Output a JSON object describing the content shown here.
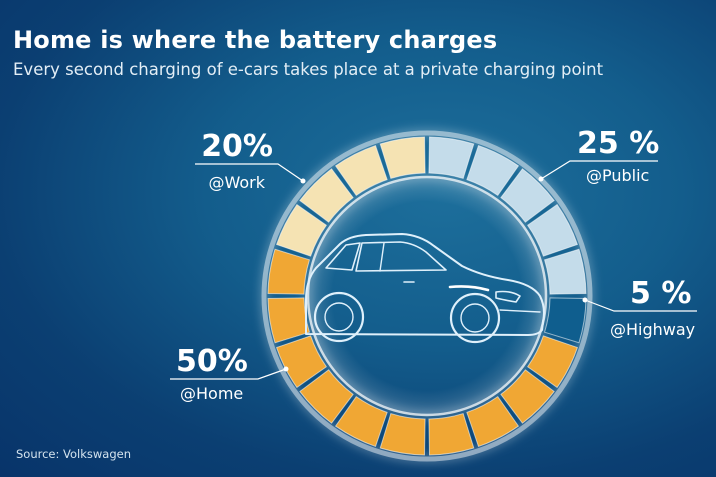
{
  "header": {
    "title": "Home is where the battery charges",
    "subtitle": "Every second charging of e-cars takes place at a private charging point"
  },
  "source": "Source: Volkswagen",
  "chart_data": {
    "type": "pie",
    "style": "segmented ring (donut) with car illustration in center",
    "total_segments": 20,
    "series": [
      {
        "label": "@Work",
        "display": "20%",
        "value": 20,
        "color": "#f5e3b3"
      },
      {
        "label": "@Public",
        "display": "25 %",
        "value": 25,
        "color": "#c4dcea"
      },
      {
        "label": "@Highway",
        "display": "5 %",
        "value": 5,
        "color": "#0f5e8e"
      },
      {
        "label": "@Home",
        "display": "50%",
        "value": 50,
        "color": "#f0a734"
      }
    ]
  }
}
